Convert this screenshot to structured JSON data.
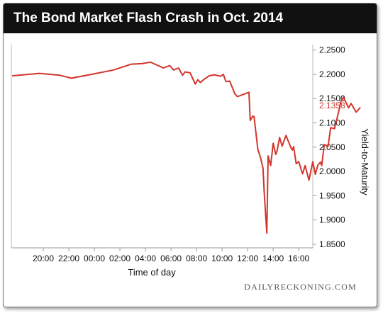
{
  "chart_data": {
    "type": "line",
    "title": "The Bond Market Flash Crash in Oct. 2014",
    "xlabel": "Time of day",
    "ylabel": "Yield-to-Maturity",
    "x_tick_labels": [
      "20:00",
      "22:00",
      "00:00",
      "02:00",
      "04:00",
      "06:00",
      "08:00",
      "10:00",
      "12:00",
      "14:00",
      "16:00"
    ],
    "y_ticks": [
      1.85,
      1.9,
      1.95,
      2.0,
      2.05,
      2.1,
      2.15,
      2.2,
      2.25
    ],
    "y_tick_labels": [
      "1.8500",
      "1.9000",
      "1.9500",
      "2.0000",
      "2.0500",
      "2.1000",
      "2.1500",
      "2.2000",
      "2.2500"
    ],
    "ylim": [
      1.8425,
      2.2612
    ],
    "x_hours_range": [
      17.5,
      41.1
    ],
    "x_axis_note": "hours measured from midnight of the first day; 24 = 00:00, 40 = 16:00",
    "y_axis_side": "right",
    "grid": false,
    "last_value_label": "2.1358",
    "series": [
      {
        "color": "#d2352c",
        "points": [
          [
            17.6,
            2.197
          ],
          [
            19.7,
            2.202
          ],
          [
            21.3,
            2.198
          ],
          [
            22.2,
            2.192
          ],
          [
            23.8,
            2.2
          ],
          [
            25.5,
            2.209
          ],
          [
            26.9,
            2.221
          ],
          [
            27.7,
            2.222
          ],
          [
            28.4,
            2.225
          ],
          [
            28.9,
            2.219
          ],
          [
            29.4,
            2.213
          ],
          [
            29.9,
            2.218
          ],
          [
            30.2,
            2.209
          ],
          [
            30.6,
            2.213
          ],
          [
            30.9,
            2.198
          ],
          [
            31.1,
            2.205
          ],
          [
            31.5,
            2.203
          ],
          [
            31.9,
            2.18
          ],
          [
            32.1,
            2.189
          ],
          [
            32.3,
            2.183
          ],
          [
            32.6,
            2.19
          ],
          [
            33.0,
            2.197
          ],
          [
            33.4,
            2.199
          ],
          [
            33.9,
            2.196
          ],
          [
            34.1,
            2.2
          ],
          [
            34.3,
            2.185
          ],
          [
            34.6,
            2.186
          ],
          [
            35.0,
            2.16
          ],
          [
            35.2,
            2.154
          ],
          [
            35.6,
            2.158
          ],
          [
            36.1,
            2.163
          ],
          [
            36.2,
            2.105
          ],
          [
            36.4,
            2.114
          ],
          [
            36.5,
            2.113
          ],
          [
            36.8,
            2.045
          ],
          [
            37.0,
            2.029
          ],
          [
            37.2,
            2.007
          ],
          [
            37.3,
            1.955
          ],
          [
            37.5,
            1.873
          ],
          [
            37.6,
            2.032
          ],
          [
            37.8,
            2.012
          ],
          [
            38.0,
            2.058
          ],
          [
            38.2,
            2.035
          ],
          [
            38.3,
            2.042
          ],
          [
            38.5,
            2.07
          ],
          [
            38.7,
            2.052
          ],
          [
            39.0,
            2.074
          ],
          [
            39.4,
            2.048
          ],
          [
            39.5,
            2.044
          ],
          [
            39.6,
            2.051
          ],
          [
            39.8,
            2.016
          ],
          [
            40.0,
            2.02
          ],
          [
            40.3,
            1.995
          ],
          [
            40.5,
            2.012
          ],
          [
            40.8,
            1.982
          ],
          [
            41.1,
            2.02
          ],
          [
            41.3,
            1.994
          ],
          [
            41.5,
            2.013
          ],
          [
            41.7,
            2.019
          ],
          [
            41.8,
            2.012
          ],
          [
            42.0,
            2.055
          ],
          [
            42.3,
            2.052
          ],
          [
            42.5,
            2.09
          ],
          [
            42.8,
            2.088
          ],
          [
            43.1,
            2.12
          ],
          [
            43.3,
            2.144
          ],
          [
            43.5,
            2.153
          ],
          [
            43.9,
            2.131
          ],
          [
            44.1,
            2.14
          ],
          [
            44.5,
            2.122
          ],
          [
            44.8,
            2.131
          ]
        ]
      }
    ]
  },
  "source_label": "DAILYRECKONING.COM"
}
